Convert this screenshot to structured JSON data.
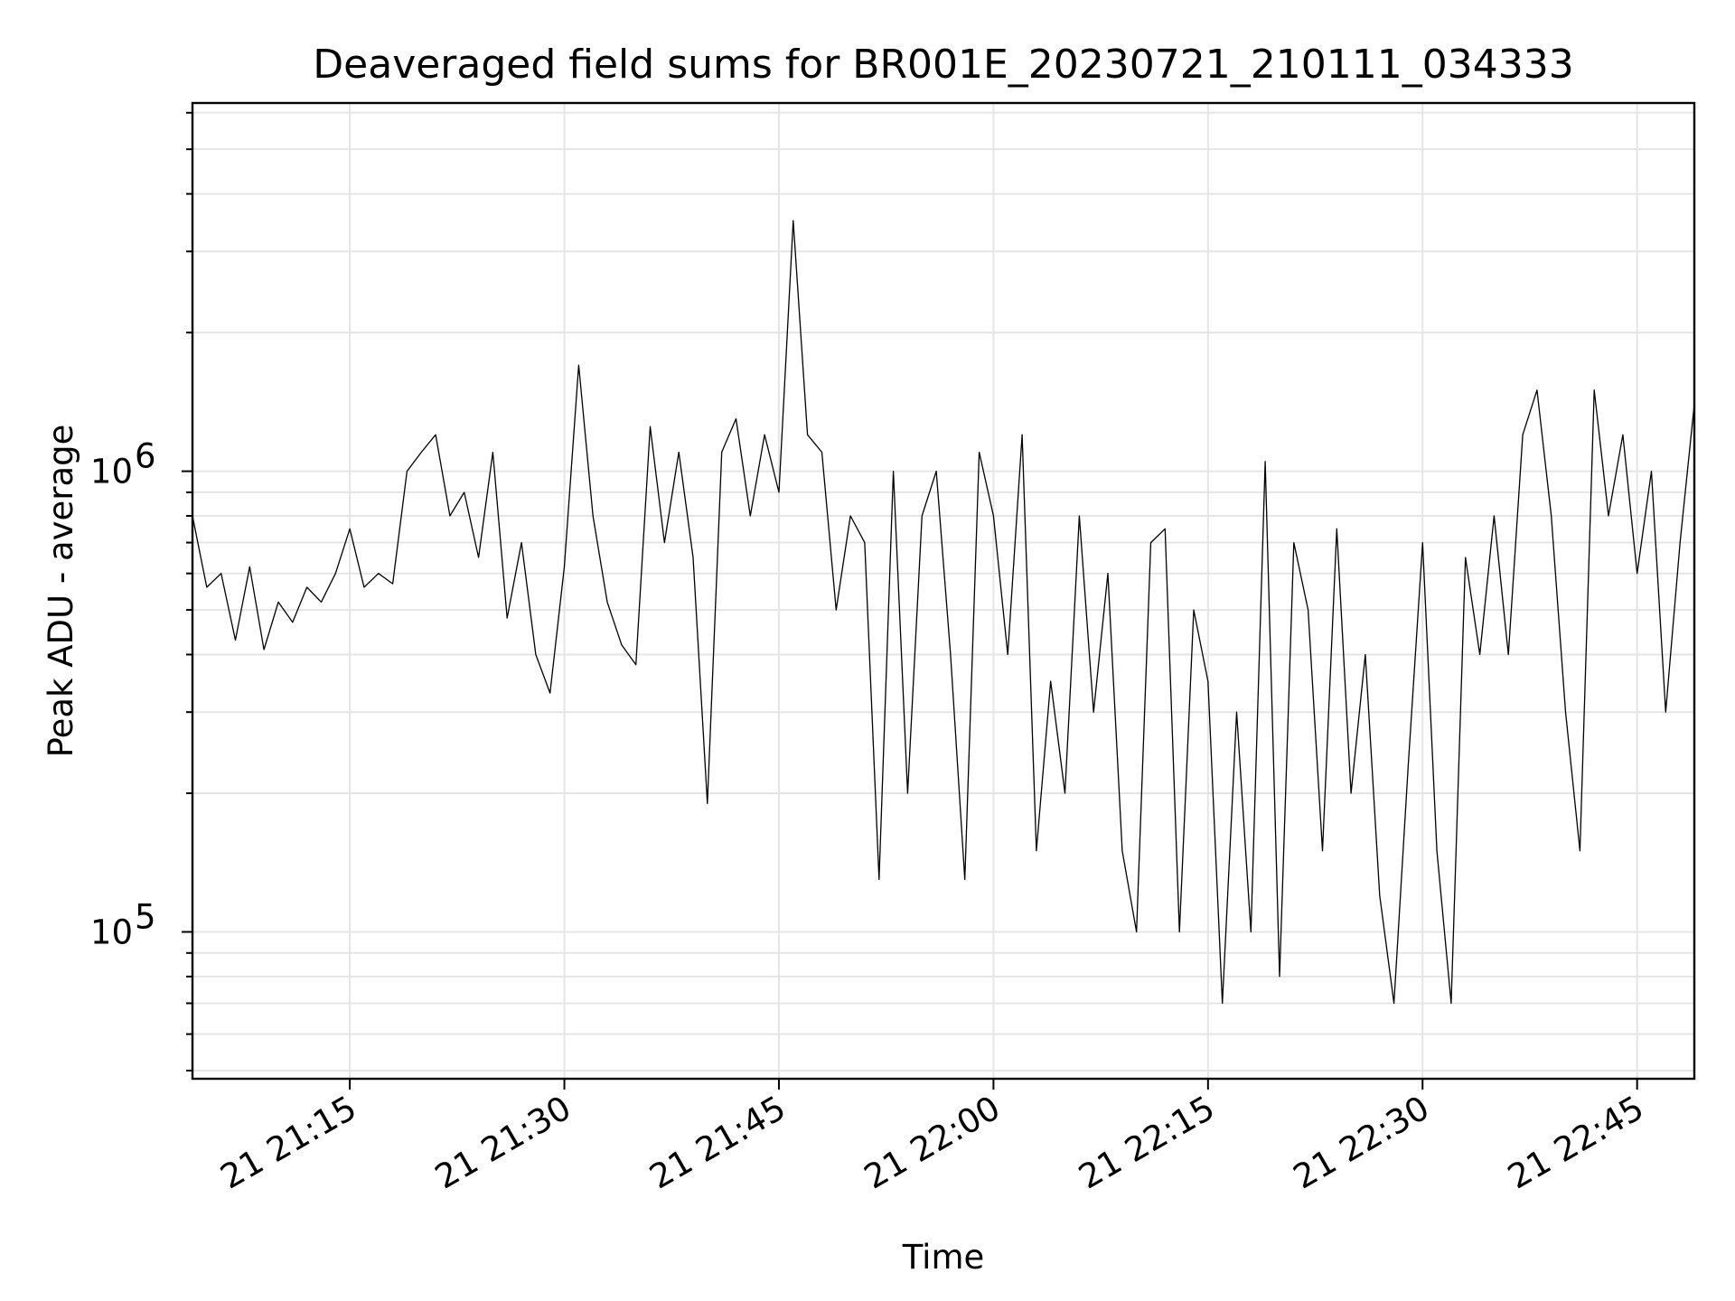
{
  "chart_data": {
    "type": "line",
    "title": "Deaveraged field sums for BR001E_20230721_210111_034333",
    "xlabel": "Time",
    "ylabel": "Peak ADU - average",
    "yscale": "log",
    "ylim": [
      48000,
      6300000
    ],
    "xlim": [
      "2023-07-21 21:04",
      "2023-07-21 22:49"
    ],
    "grid": true,
    "x_tick_labels": [
      "21 21:15",
      "21 21:30",
      "21 21:45",
      "21 22:00",
      "21 22:15",
      "21 22:30",
      "21 22:45"
    ],
    "x_tick_times": [
      "2023-07-21 21:15",
      "2023-07-21 21:30",
      "2023-07-21 21:45",
      "2023-07-21 22:00",
      "2023-07-21 22:15",
      "2023-07-21 22:30",
      "2023-07-21 22:45"
    ],
    "y_tick_labels": [
      {
        "base": "10",
        "exp": "5",
        "value": 100000
      },
      {
        "base": "10",
        "exp": "6",
        "value": 1000000
      }
    ],
    "series": [
      {
        "color": "#000000",
        "x": [
          "2023-07-21 21:04",
          "2023-07-21 21:05",
          "2023-07-21 21:06",
          "2023-07-21 21:07",
          "2023-07-21 21:08",
          "2023-07-21 21:09",
          "2023-07-21 21:10",
          "2023-07-21 21:11",
          "2023-07-21 21:12",
          "2023-07-21 21:13",
          "2023-07-21 21:14",
          "2023-07-21 21:15",
          "2023-07-21 21:16",
          "2023-07-21 21:17",
          "2023-07-21 21:18",
          "2023-07-21 21:19",
          "2023-07-21 21:20",
          "2023-07-21 21:21",
          "2023-07-21 21:22",
          "2023-07-21 21:23",
          "2023-07-21 21:24",
          "2023-07-21 21:25",
          "2023-07-21 21:26",
          "2023-07-21 21:27",
          "2023-07-21 21:28",
          "2023-07-21 21:29",
          "2023-07-21 21:30",
          "2023-07-21 21:31",
          "2023-07-21 21:32",
          "2023-07-21 21:33",
          "2023-07-21 21:34",
          "2023-07-21 21:35",
          "2023-07-21 21:36",
          "2023-07-21 21:37",
          "2023-07-21 21:38",
          "2023-07-21 21:39",
          "2023-07-21 21:40",
          "2023-07-21 21:41",
          "2023-07-21 21:42",
          "2023-07-21 21:43",
          "2023-07-21 21:44",
          "2023-07-21 21:45",
          "2023-07-21 21:46",
          "2023-07-21 21:47",
          "2023-07-21 21:48",
          "2023-07-21 21:49",
          "2023-07-21 21:50",
          "2023-07-21 21:51",
          "2023-07-21 21:52",
          "2023-07-21 21:53",
          "2023-07-21 21:54",
          "2023-07-21 21:55",
          "2023-07-21 21:56",
          "2023-07-21 21:57",
          "2023-07-21 21:58",
          "2023-07-21 21:59",
          "2023-07-21 22:00",
          "2023-07-21 22:01",
          "2023-07-21 22:02",
          "2023-07-21 22:03",
          "2023-07-21 22:04",
          "2023-07-21 22:05",
          "2023-07-21 22:06",
          "2023-07-21 22:07",
          "2023-07-21 22:08",
          "2023-07-21 22:09",
          "2023-07-21 22:10",
          "2023-07-21 22:11",
          "2023-07-21 22:12",
          "2023-07-21 22:13",
          "2023-07-21 22:14",
          "2023-07-21 22:15",
          "2023-07-21 22:16",
          "2023-07-21 22:17",
          "2023-07-21 22:18",
          "2023-07-21 22:19",
          "2023-07-21 22:20",
          "2023-07-21 22:21",
          "2023-07-21 22:22",
          "2023-07-21 22:23",
          "2023-07-21 22:24",
          "2023-07-21 22:25",
          "2023-07-21 22:26",
          "2023-07-21 22:27",
          "2023-07-21 22:28",
          "2023-07-21 22:29",
          "2023-07-21 22:30",
          "2023-07-21 22:31",
          "2023-07-21 22:32",
          "2023-07-21 22:33",
          "2023-07-21 22:34",
          "2023-07-21 22:35",
          "2023-07-21 22:36",
          "2023-07-21 22:37",
          "2023-07-21 22:38",
          "2023-07-21 22:39",
          "2023-07-21 22:40",
          "2023-07-21 22:41",
          "2023-07-21 22:42",
          "2023-07-21 22:43",
          "2023-07-21 22:44",
          "2023-07-21 22:45",
          "2023-07-21 22:46",
          "2023-07-21 22:47",
          "2023-07-21 22:48",
          "2023-07-21 22:49"
        ],
        "y": [
          800000,
          560000,
          600000,
          430000,
          620000,
          410000,
          520000,
          470000,
          560000,
          520000,
          600000,
          750000,
          560000,
          600000,
          570000,
          1000000,
          1100000,
          1200000,
          800000,
          900000,
          650000,
          1100000,
          480000,
          700000,
          400000,
          330000,
          620000,
          1700000,
          800000,
          520000,
          420000,
          380000,
          1250000,
          700000,
          1100000,
          650000,
          190000,
          1100000,
          1300000,
          800000,
          1200000,
          900000,
          3500000,
          1200000,
          1100000,
          500000,
          800000,
          700000,
          130000,
          1000000,
          200000,
          800000,
          1000000,
          400000,
          130000,
          1100000,
          800000,
          400000,
          1200000,
          150000,
          350000,
          200000,
          800000,
          300000,
          600000,
          150000,
          100000,
          700000,
          750000,
          100000,
          500000,
          350000,
          70000,
          300000,
          100000,
          1050000,
          80000,
          700000,
          500000,
          150000,
          750000,
          200000,
          400000,
          120000,
          70000,
          230000,
          700000,
          150000,
          70000,
          650000,
          400000,
          800000,
          400000,
          1200000,
          1500000,
          800000,
          300000,
          150000,
          1500000,
          800000,
          1200000,
          600000,
          1000000,
          300000,
          700000,
          1400000
        ]
      }
    ]
  }
}
